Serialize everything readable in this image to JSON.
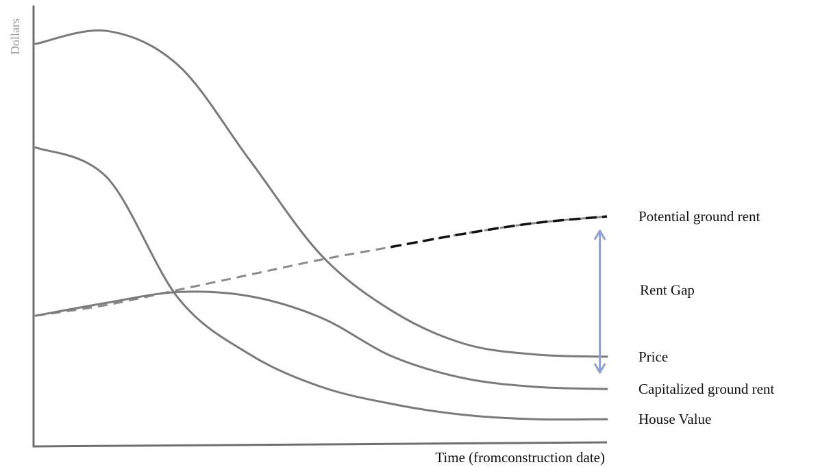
{
  "chart_data": {
    "type": "line",
    "title": "",
    "xlabel": "Time (fromconstruction date)",
    "ylabel": "Dollars",
    "x": [
      0,
      1,
      2,
      3,
      4,
      5,
      6,
      7,
      8
    ],
    "xlim": [
      0,
      8
    ],
    "ylim": [
      0,
      100
    ],
    "grid": false,
    "legend": "inline-right",
    "series": [
      {
        "name": "Potential ground rent",
        "values": [
          30,
          32.5,
          36,
          39.5,
          43,
          46,
          49,
          51.5,
          53
        ],
        "style": "dashed",
        "color": "#111111"
      },
      {
        "name": "Price",
        "values": [
          93,
          96,
          88,
          66,
          44,
          31,
          23.5,
          21,
          20.5
        ],
        "style": "solid",
        "color": "#7a7a7a"
      },
      {
        "name": "Capitalized ground rent",
        "values": [
          30,
          33,
          35.5,
          34.5,
          29.5,
          20.5,
          15.5,
          13.5,
          13
        ],
        "style": "solid",
        "color": "#7a7a7a"
      },
      {
        "name": "House Value",
        "values": [
          69,
          62,
          34,
          21,
          13.5,
          9.5,
          7,
          6,
          6
        ],
        "style": "solid",
        "color": "#7a7a7a"
      }
    ],
    "annotations": [
      {
        "text": "Rent Gap",
        "type": "double-arrow",
        "x": 7.9,
        "from": 50,
        "to": 16.5,
        "color": "#8ea0d8"
      }
    ]
  }
}
